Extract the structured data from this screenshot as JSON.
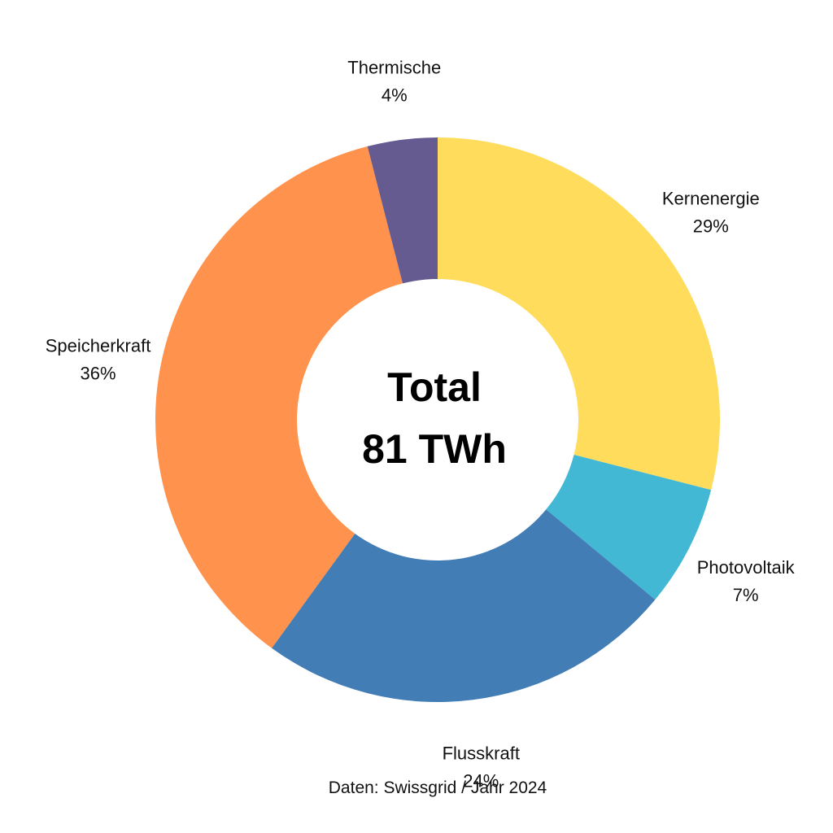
{
  "chart_data": {
    "type": "pie",
    "subtype": "donut",
    "start_angle_deg": 0,
    "direction": "clockwise",
    "slices": [
      {
        "label": "Kernenergie",
        "value": 29,
        "display": "29%",
        "color": "#FFDC5C"
      },
      {
        "label": "Photovoltaik",
        "value": 7,
        "display": "7%",
        "color": "#43B8D5"
      },
      {
        "label": "Flusskraft",
        "value": 24,
        "display": "24%",
        "color": "#437DB6"
      },
      {
        "label": "Speicherkraft",
        "value": 36,
        "display": "36%",
        "color": "#FF934D"
      },
      {
        "label": "Thermische",
        "value": 4,
        "display": "4%",
        "color": "#655B91"
      }
    ],
    "center": {
      "line1": "Total",
      "line2": "81 TWh"
    },
    "source": "Daten: Swissgrid / Jahr 2024"
  }
}
